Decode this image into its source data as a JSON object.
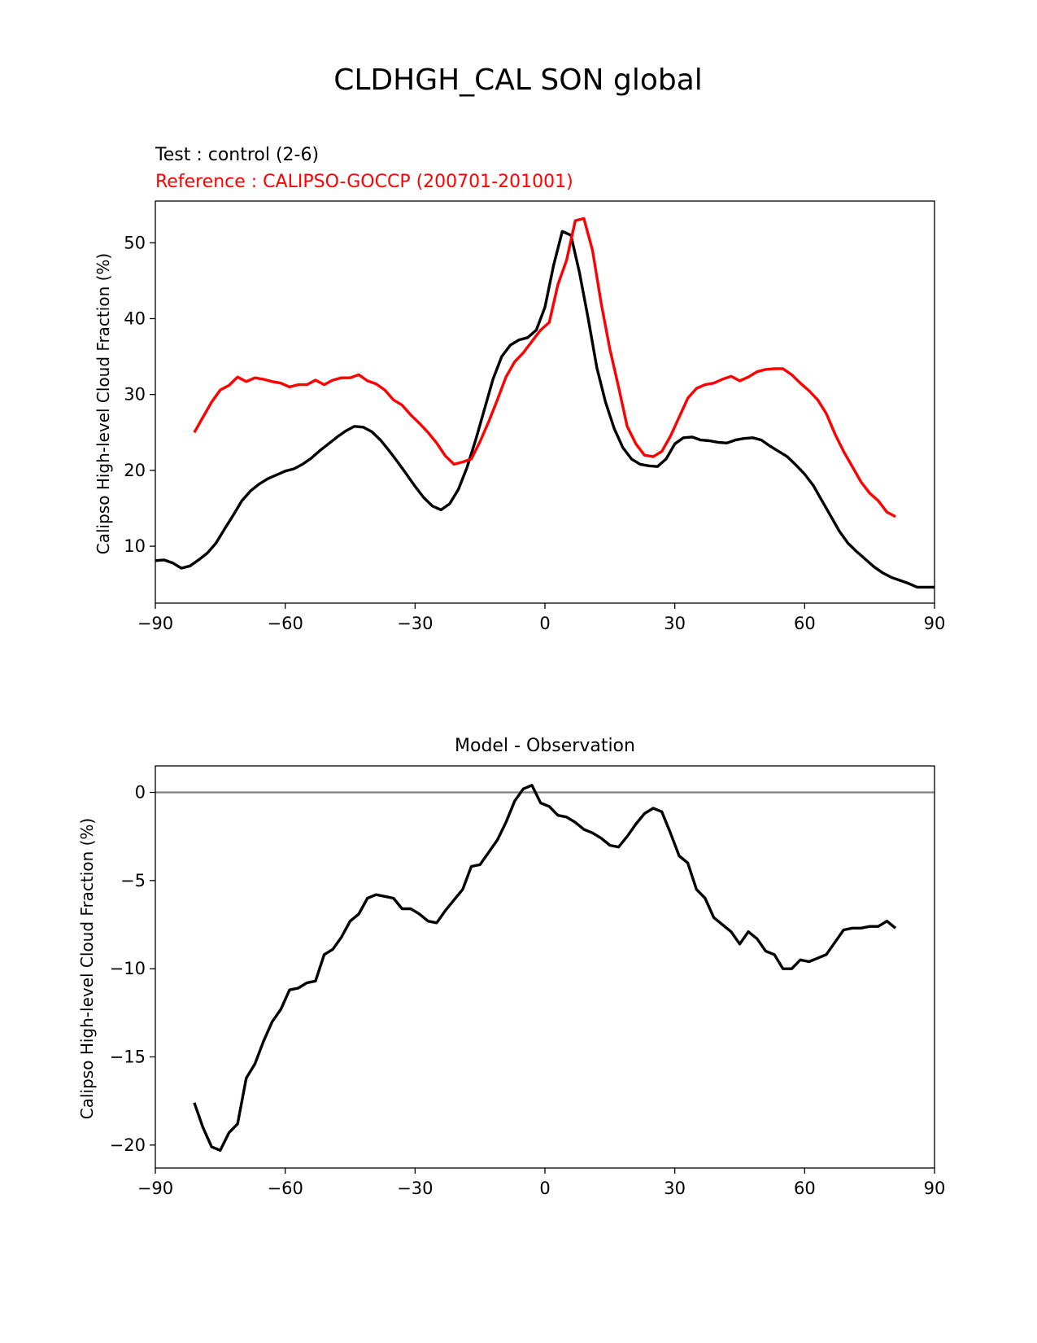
{
  "page_title": "CLDHGH_CAL SON global",
  "chart_data": [
    {
      "type": "line",
      "title_test": "Test : control (2-6)",
      "title_reference": "Reference : CALIPSO-GOCCP (200701-201001)",
      "xlabel": "",
      "ylabel": "Calipso High-level Cloud Fraction (%)",
      "xlim": [
        -90,
        90
      ],
      "ylim": [
        2.5,
        55.5
      ],
      "xticks": [
        -90,
        -60,
        -30,
        0,
        30,
        60,
        90
      ],
      "xtick_labels": [
        "−90",
        "−60",
        "−30",
        "0",
        "30",
        "60",
        "90"
      ],
      "yticks": [
        10,
        20,
        30,
        40,
        50
      ],
      "ytick_labels": [
        "10",
        "20",
        "30",
        "40",
        "50"
      ],
      "series": [
        {
          "name": "Test : control (2-6)",
          "color": "#000000",
          "x": [
            -90,
            -88,
            -86,
            -84,
            -82,
            -80,
            -78,
            -76,
            -74,
            -72,
            -70,
            -68,
            -66,
            -64,
            -62,
            -60,
            -58,
            -56,
            -54,
            -52,
            -50,
            -48,
            -46,
            -44,
            -42,
            -40,
            -38,
            -36,
            -34,
            -32,
            -30,
            -28,
            -26,
            -24,
            -22,
            -20,
            -18,
            -16,
            -14,
            -12,
            -10,
            -8,
            -6,
            -4,
            -2,
            0,
            2,
            4,
            6,
            8,
            10,
            12,
            14,
            16,
            18,
            20,
            22,
            24,
            26,
            28,
            30,
            32,
            34,
            36,
            38,
            40,
            42,
            44,
            46,
            48,
            50,
            52,
            54,
            56,
            58,
            60,
            62,
            64,
            66,
            68,
            70,
            72,
            74,
            76,
            78,
            80,
            82,
            84,
            86,
            88,
            90
          ],
          "values": [
            8.1,
            8.2,
            7.8,
            7.1,
            7.4,
            8.2,
            9.1,
            10.4,
            12.3,
            14.1,
            16.0,
            17.3,
            18.2,
            18.9,
            19.4,
            19.9,
            20.2,
            20.8,
            21.6,
            22.6,
            23.5,
            24.4,
            25.2,
            25.8,
            25.7,
            25.1,
            24.0,
            22.6,
            21.1,
            19.5,
            17.9,
            16.4,
            15.3,
            14.8,
            15.6,
            17.5,
            20.4,
            24.0,
            28.0,
            32.0,
            35.0,
            36.5,
            37.2,
            37.5,
            38.5,
            41.5,
            47.0,
            51.5,
            51.0,
            46.0,
            40.0,
            33.5,
            29.0,
            25.5,
            23.0,
            21.5,
            20.8,
            20.6,
            20.5,
            21.5,
            23.5,
            24.3,
            24.4,
            24.0,
            23.9,
            23.7,
            23.6,
            24.0,
            24.2,
            24.3,
            24.0,
            23.2,
            22.5,
            21.8,
            20.7,
            19.5,
            18.0,
            16.0,
            14.0,
            12.0,
            10.4,
            9.3,
            8.3,
            7.3,
            6.5,
            5.9,
            5.5,
            5.1,
            4.6,
            4.6,
            4.6
          ]
        },
        {
          "name": "Reference : CALIPSO-GOCCP (200701-201001)",
          "color": "#ff0000",
          "x": [
            -81,
            -79,
            -77,
            -75,
            -73,
            -71,
            -69,
            -67,
            -65,
            -63,
            -61,
            -59,
            -57,
            -55,
            -53,
            -51,
            -49,
            -47,
            -45,
            -43,
            -41,
            -39,
            -37,
            -35,
            -33,
            -31,
            -29,
            -27,
            -25,
            -23,
            -21,
            -19,
            -17,
            -15,
            -13,
            -11,
            -9,
            -7,
            -5,
            -3,
            -1,
            1,
            3,
            5,
            7,
            9,
            11,
            13,
            15,
            17,
            19,
            21,
            23,
            25,
            27,
            29,
            31,
            33,
            35,
            37,
            39,
            41,
            43,
            45,
            47,
            49,
            51,
            53,
            55,
            57,
            59,
            61,
            63,
            65,
            67,
            69,
            71,
            73,
            75,
            77,
            79,
            81
          ],
          "values": [
            25.0,
            27.0,
            29.0,
            30.6,
            31.2,
            32.3,
            31.7,
            32.2,
            32.0,
            31.7,
            31.5,
            31.0,
            31.3,
            31.3,
            31.9,
            31.3,
            31.9,
            32.2,
            32.2,
            32.6,
            31.8,
            31.4,
            30.6,
            29.3,
            28.6,
            27.3,
            26.2,
            25.0,
            23.6,
            21.9,
            20.8,
            21.1,
            21.5,
            23.8,
            26.4,
            29.3,
            32.3,
            34.3,
            35.5,
            37.0,
            38.5,
            39.5,
            44.5,
            47.7,
            52.9,
            53.2,
            49.0,
            42.0,
            36.0,
            31.0,
            25.8,
            23.5,
            22.0,
            21.8,
            22.5,
            24.5,
            27.0,
            29.5,
            30.8,
            31.3,
            31.5,
            32.0,
            32.4,
            31.8,
            32.3,
            33.0,
            33.3,
            33.4,
            33.4,
            32.6,
            31.5,
            30.5,
            29.3,
            27.5,
            24.8,
            22.5,
            20.5,
            18.5,
            17.0,
            16.0,
            14.5,
            13.9
          ]
        }
      ]
    },
    {
      "type": "line",
      "title": "Model - Observation",
      "xlabel": "",
      "ylabel": "Calipso High-level Cloud Fraction (%)",
      "xlim": [
        -90,
        90
      ],
      "ylim": [
        -21.3,
        1.5
      ],
      "xticks": [
        -90,
        -60,
        -30,
        0,
        30,
        60,
        90
      ],
      "xtick_labels": [
        "−90",
        "−60",
        "−30",
        "0",
        "30",
        "60",
        "90"
      ],
      "yticks": [
        0,
        -5,
        -10,
        -15,
        -20
      ],
      "ytick_labels": [
        "0",
        "−5",
        "−10",
        "−15",
        "−20"
      ],
      "zero_line_color": "#808080",
      "series": [
        {
          "name": "Model - Observation",
          "color": "#000000",
          "x": [
            -81,
            -79,
            -77,
            -75,
            -73,
            -71,
            -69,
            -67,
            -65,
            -63,
            -61,
            -59,
            -57,
            -55,
            -53,
            -51,
            -49,
            -47,
            -45,
            -43,
            -41,
            -39,
            -37,
            -35,
            -33,
            -31,
            -29,
            -27,
            -25,
            -23,
            -21,
            -19,
            -17,
            -15,
            -13,
            -11,
            -9,
            -7,
            -5,
            -3,
            -1,
            1,
            3,
            5,
            7,
            9,
            11,
            13,
            15,
            17,
            19,
            21,
            23,
            25,
            27,
            29,
            31,
            33,
            35,
            37,
            39,
            41,
            43,
            45,
            47,
            49,
            51,
            53,
            55,
            57,
            59,
            61,
            63,
            65,
            67,
            69,
            71,
            73,
            75,
            77,
            79,
            81
          ],
          "values": [
            -17.6,
            -19.0,
            -20.1,
            -20.3,
            -19.3,
            -18.8,
            -16.2,
            -15.4,
            -14.1,
            -13.0,
            -12.3,
            -11.2,
            -11.1,
            -10.8,
            -10.7,
            -9.2,
            -8.9,
            -8.2,
            -7.3,
            -6.9,
            -6.0,
            -5.8,
            -5.9,
            -6.0,
            -6.6,
            -6.6,
            -6.9,
            -7.3,
            -7.4,
            -6.7,
            -6.1,
            -5.5,
            -4.2,
            -4.1,
            -3.4,
            -2.7,
            -1.7,
            -0.5,
            0.2,
            0.4,
            -0.6,
            -0.8,
            -1.3,
            -1.4,
            -1.7,
            -2.1,
            -2.3,
            -2.6,
            -3.0,
            -3.1,
            -2.5,
            -1.8,
            -1.2,
            -0.9,
            -1.1,
            -2.3,
            -3.6,
            -4.0,
            -5.5,
            -6.0,
            -7.1,
            -7.5,
            -7.9,
            -8.6,
            -7.9,
            -8.3,
            -9.0,
            -9.2,
            -10.0,
            -10.0,
            -9.5,
            -9.6,
            -9.4,
            -9.2,
            -8.5,
            -7.8,
            -7.7,
            -7.7,
            -7.6,
            -7.6,
            -7.3,
            -7.7
          ]
        }
      ]
    }
  ]
}
